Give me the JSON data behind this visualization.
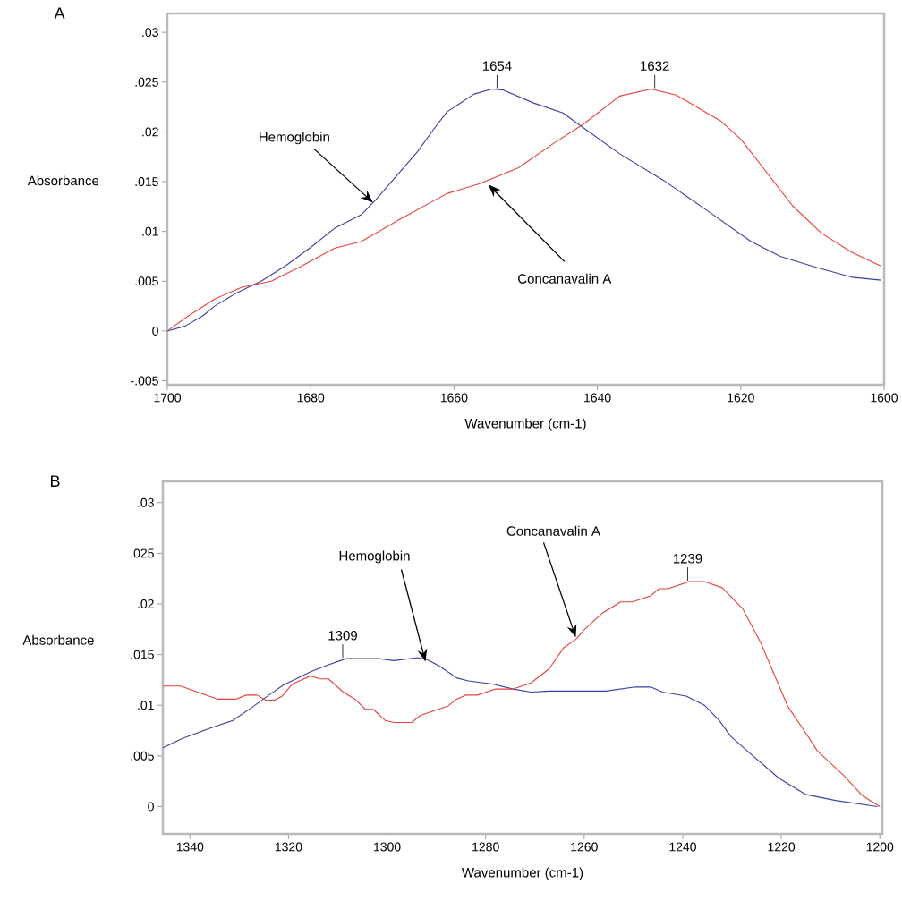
{
  "chart_data": [
    {
      "type": "line",
      "title": "A",
      "xlabel": "Wavenumber (cm-1)",
      "ylabel": "Absorbance",
      "xlim": [
        1700,
        1600
      ],
      "xticks": [
        1700,
        1680,
        1660,
        1640,
        1620,
        1600
      ],
      "ylim": [
        -0.0054,
        0.0319
      ],
      "yticks": [
        {
          "value": -0.005,
          "label": "-.005"
        },
        0,
        {
          "value": 0.005,
          "label": ".005"
        },
        {
          "value": 0.01,
          "label": ".01"
        },
        {
          "value": 0.015,
          "label": ".015"
        },
        {
          "value": 0.02,
          "label": ".02"
        },
        {
          "value": 0.025,
          "label": ".025"
        },
        {
          "value": 0.03,
          "label": ".03"
        }
      ],
      "series": [
        {
          "color": "#3b3fa0",
          "x": [
            1700,
            1697.5,
            1695.1,
            1693.4,
            1690.4,
            1686.7,
            1683.4,
            1680,
            1676.7,
            1672.9,
            1670.9,
            1668,
            1665.1,
            1663,
            1661,
            1657.2,
            1654.7,
            1653.1,
            1648.9,
            1644.8,
            1642.3,
            1636.9,
            1630.7,
            1624.5,
            1618.6,
            1614.5,
            1609.5,
            1604.5,
            1600.4
          ],
          "values": [
            0,
            0.0005,
            0.0015,
            0.0025,
            0.0038,
            0.0051,
            0.0066,
            0.0084,
            0.0103,
            0.0117,
            0.0132,
            0.0156,
            0.018,
            0.0201,
            0.022,
            0.0238,
            0.0243,
            0.0242,
            0.0229,
            0.0219,
            0.0206,
            0.0178,
            0.0151,
            0.012,
            0.009,
            0.0075,
            0.0064,
            0.0054,
            0.0051
          ]
        },
        {
          "color": "#e8413b",
          "x": [
            1700,
            1697.1,
            1693.4,
            1689.6,
            1685.5,
            1681.3,
            1676.7,
            1672.9,
            1667.6,
            1661,
            1656.4,
            1651,
            1646,
            1641.9,
            1636.9,
            1632.5,
            1629,
            1622.8,
            1619.9,
            1612.8,
            1608.7,
            1604.5,
            1600.4
          ],
          "values": [
            0,
            0.0015,
            0.0032,
            0.0044,
            0.005,
            0.0065,
            0.0083,
            0.009,
            0.0112,
            0.0138,
            0.0148,
            0.0164,
            0.0189,
            0.0208,
            0.0236,
            0.0243,
            0.0237,
            0.0211,
            0.0192,
            0.0126,
            0.0098,
            0.0079,
            0.0065
          ]
        }
      ],
      "annotations": [
        {
          "text": "Hemoglobin",
          "x": 1671.3,
          "y": 0.0129
        },
        {
          "text": "Concanavalin A",
          "x": 1655.2,
          "y": 0.0147
        },
        {
          "text": "1654",
          "x": 1654,
          "y": 0.0243
        },
        {
          "text": "1632",
          "x": 1632,
          "y": 0.0243
        }
      ]
    },
    {
      "type": "line",
      "title": "B",
      "xlabel": "Wavenumber (cm-1)",
      "ylabel": "Absorbance",
      "xlim": [
        1345.5,
        1199.5
      ],
      "xticks": [
        1340,
        1320,
        1300,
        1280,
        1260,
        1240,
        1220,
        1200
      ],
      "ylim": [
        -0.0027,
        0.0321
      ],
      "yticks": [
        0,
        {
          "value": 0.005,
          "label": ".005"
        },
        {
          "value": 0.01,
          "label": ".01"
        },
        {
          "value": 0.015,
          "label": ".015"
        },
        {
          "value": 0.02,
          "label": ".02"
        },
        {
          "value": 0.025,
          "label": ".025"
        },
        {
          "value": 0.03,
          "label": ".03"
        }
      ],
      "series": [
        {
          "color": "#3b3fa0",
          "x": [
            1345.5,
            1341.6,
            1336.1,
            1331.3,
            1327.1,
            1324,
            1321,
            1315.5,
            1311.9,
            1308.3,
            1301.6,
            1298.6,
            1293.8,
            1291.9,
            1289.5,
            1285.9,
            1283.5,
            1278.6,
            1274.4,
            1270.8,
            1267.1,
            1260.5,
            1255.6,
            1249.6,
            1246.5,
            1244.1,
            1239.3,
            1235.6,
            1232.6,
            1230.2,
            1226,
            1220.5,
            1215.1,
            1209,
            1200.5
          ],
          "values": [
            0.0058,
            0.0067,
            0.0077,
            0.0085,
            0.0099,
            0.011,
            0.012,
            0.0133,
            0.014,
            0.0146,
            0.0146,
            0.0144,
            0.0147,
            0.0145,
            0.0139,
            0.0127,
            0.0124,
            0.0121,
            0.0116,
            0.0113,
            0.0114,
            0.0114,
            0.0114,
            0.0118,
            0.0118,
            0.0113,
            0.0109,
            0.01,
            0.0085,
            0.0069,
            0.0051,
            0.0028,
            0.0012,
            0.0006,
            0
          ]
        },
        {
          "color": "#e8413b",
          "x": [
            1345.5,
            1341.9,
            1337.3,
            1334.3,
            1330.7,
            1328.6,
            1326.4,
            1324.6,
            1322.8,
            1321.3,
            1319.2,
            1315.5,
            1313.7,
            1311.9,
            1308.9,
            1306.5,
            1304.4,
            1302.8,
            1300.4,
            1298.6,
            1295,
            1293.2,
            1287.7,
            1285.9,
            1284.1,
            1281.7,
            1278,
            1274.4,
            1270.8,
            1267.1,
            1264.1,
            1261.7,
            1259.9,
            1256.3,
            1252.6,
            1250.2,
            1246.5,
            1244.8,
            1243,
            1238.7,
            1235.6,
            1232,
            1227.8,
            1224.2,
            1218.7,
            1215.1,
            1212.7,
            1207.2,
            1203.6,
            1200
          ],
          "values": [
            0.0119,
            0.0119,
            0.0111,
            0.0106,
            0.0106,
            0.011,
            0.011,
            0.0105,
            0.0105,
            0.0109,
            0.0121,
            0.0129,
            0.0126,
            0.0126,
            0.0113,
            0.0106,
            0.0096,
            0.0096,
            0.0085,
            0.0083,
            0.0083,
            0.009,
            0.0099,
            0.0106,
            0.011,
            0.011,
            0.0116,
            0.0116,
            0.0122,
            0.0136,
            0.0157,
            0.0165,
            0.0175,
            0.0191,
            0.0202,
            0.0202,
            0.0208,
            0.0215,
            0.0215,
            0.0222,
            0.0222,
            0.0216,
            0.0195,
            0.0162,
            0.0099,
            0.0073,
            0.0055,
            0.003,
            0.0011,
            0
          ]
        }
      ],
      "annotations": [
        {
          "text": "Hemoglobin",
          "x": 1292.2,
          "y": 0.0143
        },
        {
          "text": "Concanavalin A",
          "x": 1261.7,
          "y": 0.0167
        },
        {
          "text": "1309",
          "x": 1309,
          "y": 0.0146
        },
        {
          "text": "1239",
          "x": 1239,
          "y": 0.0222
        }
      ]
    }
  ]
}
